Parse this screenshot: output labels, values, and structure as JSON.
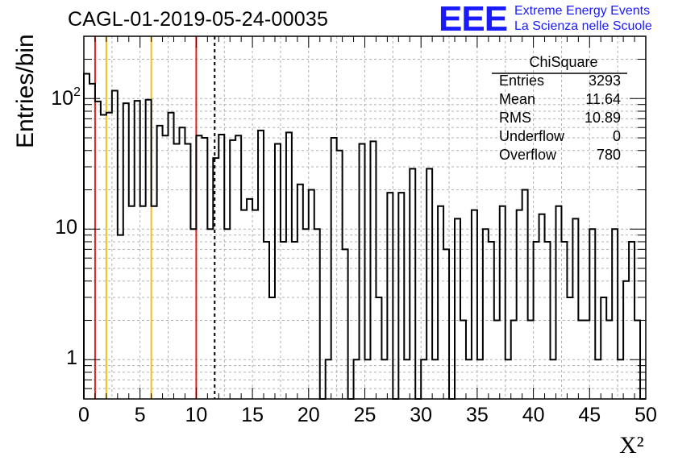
{
  "header": {
    "title": "CAGL-01-2019-05-24-00035",
    "logo_mark": "EEE",
    "logo_line1": "Extreme Energy Events",
    "logo_line2": "La Scienza nelle Scuole"
  },
  "stats_box": {
    "title": "ChiSquare",
    "rows": [
      {
        "label": "Entries",
        "value": "3293"
      },
      {
        "label": "Mean",
        "value": "11.64"
      },
      {
        "label": "RMS",
        "value": "10.89"
      },
      {
        "label": "Underflow",
        "value": "0"
      },
      {
        "label": "Overflow",
        "value": "780"
      }
    ]
  },
  "colors": {
    "red_line": "#e02020",
    "orange_line": "#f0c020",
    "grid": "#b0b0b0",
    "logo": "#1a1aff"
  },
  "chart_data": {
    "type": "bar",
    "histogram": true,
    "xlabel": "X²",
    "ylabel": "Entries/bin",
    "xlim": [
      0,
      50
    ],
    "ylim": [
      0.5,
      300
    ],
    "yscale": "log",
    "grid": true,
    "bin_width": 0.5,
    "x_ticks": [
      "0",
      "5",
      "10",
      "15",
      "20",
      "25",
      "30",
      "35",
      "40",
      "45",
      "50"
    ],
    "y_ticks": [
      {
        "value": 1,
        "label": "1"
      },
      {
        "value": 10,
        "label": "10"
      },
      {
        "value": 100,
        "label": "10",
        "exponent": "2"
      }
    ],
    "values": [
      155,
      130,
      95,
      75,
      78,
      115,
      9,
      92,
      15,
      96,
      15,
      98,
      15,
      62,
      52,
      78,
      45,
      60,
      45,
      10,
      52,
      50,
      10,
      35,
      53,
      10,
      48,
      52,
      14,
      17,
      14,
      57,
      8,
      3,
      45,
      8,
      55,
      8,
      22,
      10,
      20,
      10,
      0.1,
      1,
      50,
      40,
      7,
      0.1,
      1,
      45,
      1,
      47,
      3,
      1,
      19,
      0.1,
      19,
      1,
      29,
      0.1,
      1,
      29,
      1,
      15,
      7,
      0.1,
      12,
      2,
      1,
      14,
      1,
      10,
      8,
      2,
      15,
      1,
      2,
      14,
      20,
      2,
      8,
      13,
      8,
      1,
      15,
      8,
      3,
      12,
      2,
      2,
      10,
      1,
      3,
      2,
      10,
      1,
      4,
      8,
      2,
      0.1
    ],
    "reference_lines": [
      {
        "x": 1,
        "color": "#e02020",
        "style": "solid"
      },
      {
        "x": 2,
        "color": "#f0c020",
        "style": "solid"
      },
      {
        "x": 6,
        "color": "#f0c020",
        "style": "solid"
      },
      {
        "x": 10,
        "color": "#e02020",
        "style": "solid"
      },
      {
        "x": 11.64,
        "color": "#000000",
        "style": "dashed"
      }
    ]
  }
}
